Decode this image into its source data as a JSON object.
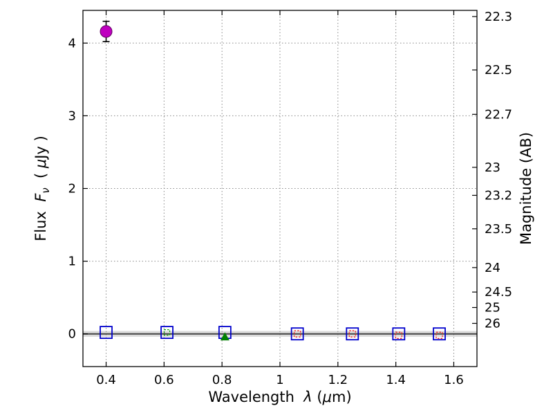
{
  "chart_data": {
    "type": "scatter",
    "title": "",
    "xlabel": "Wavelength λ (μm)",
    "ylabel_left": "Flux Fν ( μJy )",
    "ylabel_right": "Magnitude (AB)",
    "xlim": [
      0.32,
      1.68
    ],
    "ylim": [
      -0.45,
      4.45
    ],
    "x_ticks": [
      0.4,
      0.6,
      0.8,
      1.0,
      1.2,
      1.4,
      1.6
    ],
    "x_tick_labels": [
      "0.4",
      "0.6",
      "0.8",
      "1",
      "1.2",
      "1.4",
      "1.6"
    ],
    "y_ticks_left": [
      0,
      1,
      2,
      3,
      4
    ],
    "y_tick_labels_left": [
      "0",
      "1",
      "2",
      "3",
      "4"
    ],
    "y_ticks_right": [
      22.3,
      22.5,
      22.7,
      23.0,
      23.2,
      23.5,
      24.0,
      24.5,
      25.0,
      26.0
    ],
    "y_tick_labels_right": [
      "22.3",
      "22.5",
      "22.7",
      "23",
      "23.2",
      "23.5",
      "24",
      "24.5",
      "25",
      "26"
    ],
    "ab_zeropoint": 23.9,
    "grid": true,
    "grid_color": "#888888",
    "frame_color": "#000000",
    "zero_line": {
      "y": 0,
      "color": "#444444",
      "band_halfwidth": 0.04,
      "band_color": "#999999"
    },
    "label_parts": {
      "x": [
        {
          "t": "Wavelength  "
        },
        {
          "t": "λ",
          "i": true
        },
        {
          "t": " (",
          "i": false
        },
        {
          "t": "μ",
          "i": true
        },
        {
          "t": "m)"
        }
      ],
      "y_left": [
        {
          "t": "Flux  "
        },
        {
          "t": "F",
          "i": true
        },
        {
          "t": "ν",
          "i": true,
          "sub": true
        },
        {
          "t": "  ( "
        },
        {
          "t": "μ",
          "i": true
        },
        {
          "t": "Jy )"
        }
      ],
      "y_right": [
        {
          "t": "Magnitude (AB)"
        }
      ]
    },
    "series": [
      {
        "name": "broadband-photometry-blue-squares",
        "marker": "open-square",
        "color": "#0000cc",
        "size": 17,
        "linewidth": 1.8,
        "points": [
          {
            "x": 0.4,
            "y": 0.02
          },
          {
            "x": 0.61,
            "y": 0.02
          },
          {
            "x": 0.81,
            "y": 0.02
          },
          {
            "x": 1.06,
            "y": 0.0
          },
          {
            "x": 1.25,
            "y": 0.0
          },
          {
            "x": 1.41,
            "y": 0.0
          },
          {
            "x": 1.55,
            "y": 0.0
          }
        ]
      },
      {
        "name": "photometry-red-inner-squares",
        "marker": "open-square",
        "color": "#ee2222",
        "size": 9,
        "linewidth": 1.3,
        "dashed": true,
        "points": [
          {
            "x": 1.06,
            "y": 0.0
          },
          {
            "x": 1.25,
            "y": 0.0
          },
          {
            "x": 1.41,
            "y": -0.02
          },
          {
            "x": 1.55,
            "y": -0.02
          }
        ]
      },
      {
        "name": "photometry-green-inner-square",
        "marker": "open-square",
        "color": "#00a000",
        "size": 8,
        "linewidth": 1.2,
        "dashed": true,
        "points": [
          {
            "x": 0.61,
            "y": 0.02
          }
        ]
      },
      {
        "name": "model-green-triangle",
        "marker": "filled-triangle",
        "color": "#008000",
        "size": 13,
        "points": [
          {
            "x": 0.81,
            "y": -0.04
          }
        ]
      },
      {
        "name": "detected-flux-magenta-circle",
        "marker": "filled-circle",
        "color": "#bf00bf",
        "edge_color": "#5e005e",
        "error_color": "#000000",
        "size": 17,
        "points": [
          {
            "x": 0.4,
            "y": 4.16,
            "yerr": 0.14
          }
        ]
      }
    ]
  }
}
